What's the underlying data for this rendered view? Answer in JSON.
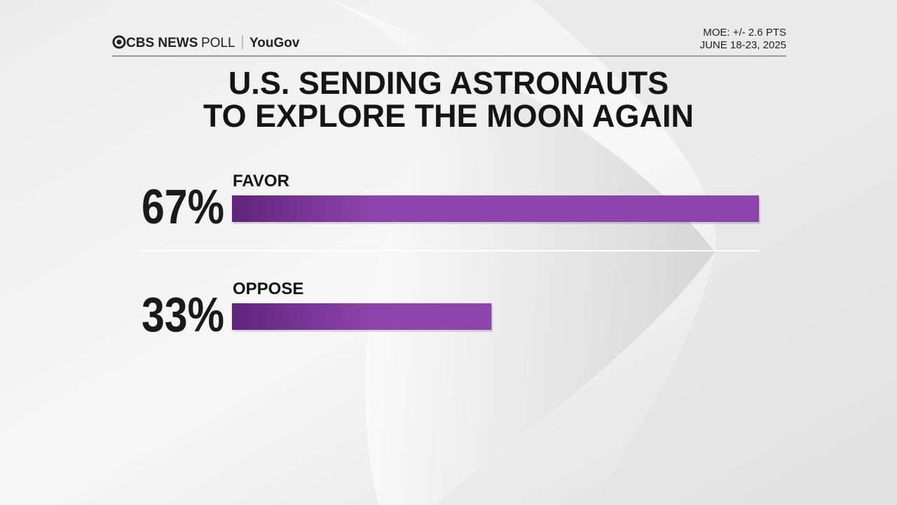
{
  "chart_data": {
    "type": "bar",
    "brand": "CBS NEWS",
    "poll": "POLL",
    "partner": "YouGov",
    "notes": [
      "MOE: +/- 2.6 PTS",
      "JUNE 18-23, 2025"
    ],
    "title": [
      "U.S. SENDING ASTRONAUTS",
      "TO EXPLORE THE MOON AGAIN"
    ],
    "categories": [
      "FAVOR",
      "OPPOSE"
    ],
    "values": [
      67,
      33
    ],
    "value_labels": [
      "67%",
      "33%"
    ],
    "color": "#8e44ad"
  }
}
